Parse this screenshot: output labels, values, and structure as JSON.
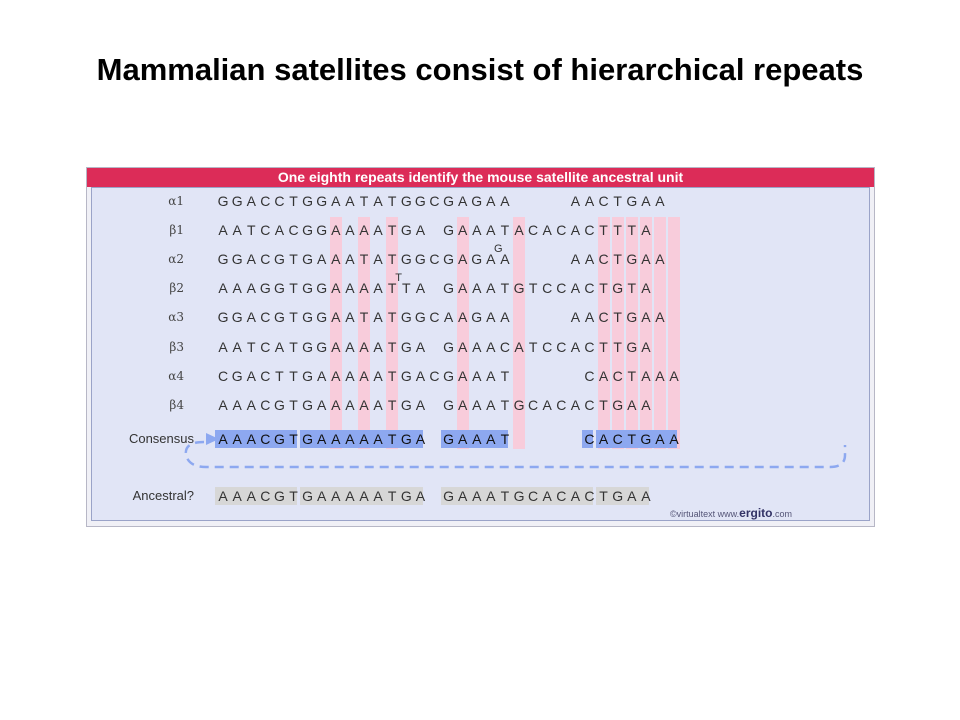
{
  "title": "Mammalian satellites consist of hierarchical repeats",
  "figure": {
    "header": "One eighth repeats identify the mouse satellite ancestral unit",
    "colors": {
      "header": "#dc2c58",
      "panel": "#e1e5f6",
      "column_highlight": "#f8ccdb",
      "consensus_bar": "#8da8f0",
      "ancestral_bar": "#d7d7d7",
      "dashed_loop": "#8da8f0"
    },
    "rows": [
      {
        "label": "α1",
        "seq": "GGACCTGGAATATGGCGAGAA    AACTGAA"
      },
      {
        "label": "β1",
        "seq": "AATCACGGAAAATGA GAAATACACACTTTA"
      },
      {
        "label": "α2",
        "seq": "GGACGTGAAATATGGCGAGAA    AACTGAA",
        "insert": {
          "after": 19,
          "char": "G"
        }
      },
      {
        "label": "β2",
        "seq": "AAAGGTGGAAAATTA GAAATGTCCACTGTA",
        "insert": {
          "after": 12,
          "char": "T"
        }
      },
      {
        "label": "α3",
        "seq": "GGACGTGGAATATGGCAAGAA    AACTGAA"
      },
      {
        "label": "β3",
        "seq": "AATCATGGAAAATGA GAAACATCCACTTGA"
      },
      {
        "label": "α4",
        "seq": "CGACTTGAAAAATGACGAAAT     CACTAAA"
      },
      {
        "label": "β4",
        "seq": "AAACGTGAAAAATGA GAAATGCACACTGAA"
      }
    ],
    "highlight_columns": [
      8,
      10,
      12,
      17,
      21,
      27,
      28,
      29,
      30,
      31,
      32
    ],
    "consensus": {
      "label": "Consensus",
      "seq": "AAACGTGAAAAATGA GAAAT     CACTGAA"
    },
    "ancestral": {
      "label": "Ancestral?",
      "seq": "AAACGTGAAAAATGA GAAATGCACACTGAA"
    },
    "copyright_prefix": "©virtualtext www.",
    "copyright_brand": "ergito",
    "copyright_suffix": ".com"
  }
}
